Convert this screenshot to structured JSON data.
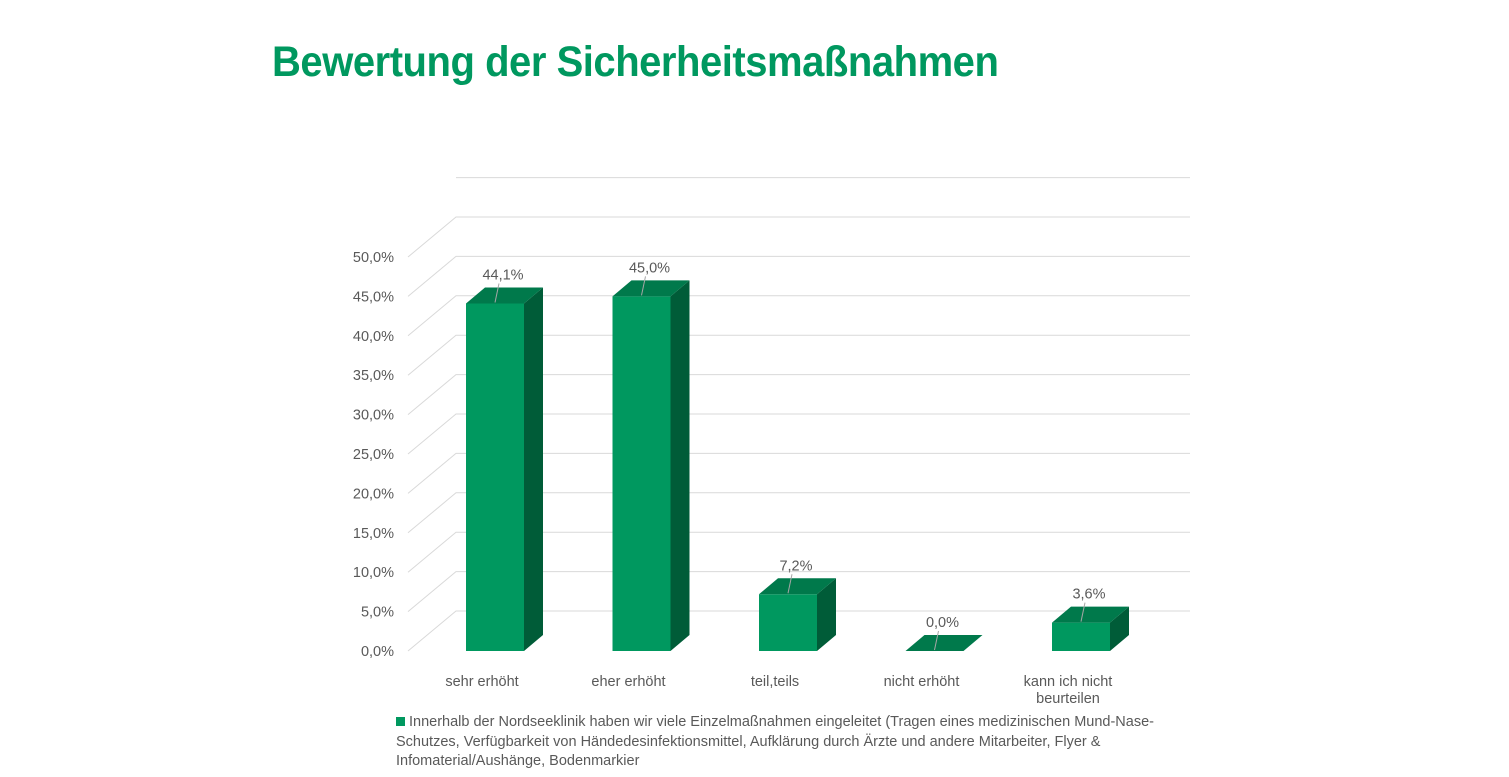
{
  "title": "Bewertung der Sicherheitsmaßnahmen",
  "colors": {
    "title": "#00985F",
    "bar_front": "#00985F",
    "bar_side": "#005C38",
    "bar_top": "#00794B",
    "grid": "#D9D9D9",
    "text": "#595959"
  },
  "chart_data": {
    "type": "bar",
    "style": "3d-column",
    "categories": [
      "sehr erhöht",
      "eher erhöht",
      "teil,teils",
      "nicht erhöht",
      "kann ich nicht beurteilen"
    ],
    "category_label_lines": [
      [
        "sehr erhöht"
      ],
      [
        "eher erhöht"
      ],
      [
        "teil,teils"
      ],
      [
        "nicht erhöht"
      ],
      [
        "kann ich nicht",
        "beurteilen"
      ]
    ],
    "series": [
      {
        "name": "Innerhalb der Nordseeklinik haben wir viele Einzelmaßnahmen  eingeleitet (Tragen eines medizinischen Mund-Nase-Schutzes, Verfügbarkeit von Händedesinfektionsmittel, Aufklärung durch Ärzte und andere Mitarbeiter, Flyer & Infomaterial/Aushänge, Bodenmarkier",
        "values": [
          44.1,
          45.0,
          7.2,
          0.0,
          3.6
        ]
      }
    ],
    "data_labels": [
      "44,1%",
      "45,0%",
      "7,2%",
      "0,0%",
      "3,6%"
    ],
    "yticks": [
      "0,0%",
      "5,0%",
      "10,0%",
      "15,0%",
      "20,0%",
      "25,0%",
      "30,0%",
      "35,0%",
      "40,0%",
      "45,0%",
      "50,0%"
    ],
    "ylim": [
      0,
      50
    ],
    "grid": true,
    "legend_position": "bottom"
  }
}
